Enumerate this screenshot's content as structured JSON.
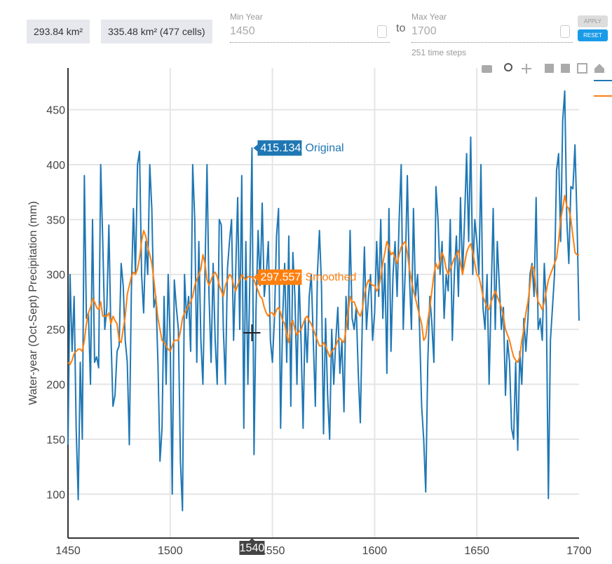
{
  "controls": {
    "area_selected": "293.84 km²",
    "area_total": "335.48 km² (477 cells)",
    "min_year_label": "Min Year",
    "min_year": "1450",
    "to": "to",
    "max_year_label": "Max Year",
    "max_year": "1700",
    "time_steps": "251 time steps",
    "apply": "APPLY",
    "reset": "RESET"
  },
  "chart_data": {
    "type": "line",
    "y_label": "Water-year (Oct-Sept) Precipitation (mm)",
    "x": [
      1450,
      1451,
      1452,
      1453,
      1454,
      1455,
      1456,
      1457,
      1458,
      1459,
      1460,
      1461,
      1462,
      1463,
      1464,
      1465,
      1466,
      1467,
      1468,
      1469,
      1470,
      1471,
      1472,
      1473,
      1474,
      1475,
      1476,
      1477,
      1478,
      1479,
      1480,
      1481,
      1482,
      1483,
      1484,
      1485,
      1486,
      1487,
      1488,
      1489,
      1490,
      1491,
      1492,
      1493,
      1494,
      1495,
      1496,
      1497,
      1498,
      1499,
      1500,
      1501,
      1502,
      1503,
      1504,
      1505,
      1506,
      1507,
      1508,
      1509,
      1510,
      1511,
      1512,
      1513,
      1514,
      1515,
      1516,
      1517,
      1518,
      1519,
      1520,
      1521,
      1522,
      1523,
      1524,
      1525,
      1526,
      1527,
      1528,
      1529,
      1530,
      1531,
      1532,
      1533,
      1534,
      1535,
      1536,
      1537,
      1538,
      1539,
      1540,
      1541,
      1542,
      1543,
      1544,
      1545,
      1546,
      1547,
      1548,
      1549,
      1550,
      1551,
      1552,
      1553,
      1554,
      1555,
      1556,
      1557,
      1558,
      1559,
      1560,
      1561,
      1562,
      1563,
      1564,
      1565,
      1566,
      1567,
      1568,
      1569,
      1570,
      1571,
      1572,
      1573,
      1574,
      1575,
      1576,
      1577,
      1578,
      1579,
      1580,
      1581,
      1582,
      1583,
      1584,
      1585,
      1586,
      1587,
      1588,
      1589,
      1590,
      1591,
      1592,
      1593,
      1594,
      1595,
      1596,
      1597,
      1598,
      1599,
      1600,
      1601,
      1602,
      1603,
      1604,
      1605,
      1606,
      1607,
      1608,
      1609,
      1610,
      1611,
      1612,
      1613,
      1614,
      1615,
      1616,
      1617,
      1618,
      1619,
      1620,
      1621,
      1622,
      1623,
      1624,
      1625,
      1626,
      1627,
      1628,
      1629,
      1630,
      1631,
      1632,
      1633,
      1634,
      1635,
      1636,
      1637,
      1638,
      1639,
      1640,
      1641,
      1642,
      1643,
      1644,
      1645,
      1646,
      1647,
      1648,
      1649,
      1650,
      1651,
      1652,
      1653,
      1654,
      1655,
      1656,
      1657,
      1658,
      1659,
      1660,
      1661,
      1662,
      1663,
      1664,
      1665,
      1666,
      1667,
      1668,
      1669,
      1670,
      1671,
      1672,
      1673,
      1674,
      1675,
      1676,
      1677,
      1678,
      1679,
      1680,
      1681,
      1682,
      1683,
      1684,
      1685,
      1686,
      1687,
      1688,
      1689,
      1690,
      1691,
      1692,
      1693,
      1694,
      1695,
      1696,
      1697,
      1698,
      1699,
      1700
    ],
    "series": [
      {
        "name": "Original",
        "color": "#1f77b4",
        "values": [
          145,
          300,
          230,
          280,
          160,
          95,
          220,
          150,
          390,
          260,
          265,
          200,
          350,
          220,
          225,
          215,
          400,
          330,
          250,
          270,
          345,
          245,
          180,
          190,
          230,
          235,
          310,
          290,
          240,
          220,
          145,
          285,
          360,
          300,
          400,
          412,
          300,
          265,
          330,
          300,
          400,
          360,
          270,
          280,
          220,
          130,
          160,
          280,
          200,
          300,
          240,
          100,
          295,
          270,
          250,
          130,
          85,
          300,
          260,
          280,
          230,
          400,
          350,
          220,
          330,
          240,
          200,
          300,
          400,
          280,
          220,
          310,
          240,
          200,
          350,
          345,
          250,
          200,
          305,
          330,
          350,
          240,
          300,
          370,
          250,
          390,
          160,
          330,
          200,
          300,
          415.1342,
          136,
          270,
          340,
          290,
          365,
          280,
          300,
          330,
          240,
          220,
          260,
          335,
          360,
          160,
          260,
          310,
          220,
          335,
          180,
          320,
          280,
          200,
          300,
          240,
          160,
          260,
          220,
          280,
          300,
          240,
          180,
          300,
          340,
          290,
          155,
          260,
          190,
          150,
          250,
          200,
          240,
          270,
          210,
          240,
          175,
          280,
          250,
          340,
          260,
          250,
          270,
          210,
          165,
          260,
          325,
          250,
          280,
          300,
          240,
          265,
          330,
          280,
          350,
          260,
          310,
          210,
          360,
          230,
          300,
          330,
          280,
          350,
          400,
          250,
          305,
          390,
          300,
          250,
          360,
          280,
          300,
          250,
          180,
          150,
          102,
          220,
          280,
          255,
          220,
          380,
          350,
          300,
          330,
          260,
          300,
          285,
          350,
          240,
          300,
          335,
          280,
          370,
          300,
          350,
          410,
          330,
          425,
          300,
          350,
          330,
          300,
          400,
          270,
          250,
          300,
          200,
          280,
          360,
          250,
          330,
          290,
          250,
          270,
          190,
          240,
          220,
          160,
          150,
          220,
          140,
          230,
          200,
          260,
          230,
          260,
          300,
          310,
          280,
          370,
          250,
          260,
          240,
          310,
          270,
          96,
          240,
          270,
          300,
          395,
          410,
          330,
          440,
          467,
          350,
          310,
          380,
          378,
          418,
          350,
          258
        ]
      },
      {
        "name": "Smoothed",
        "color": "#ff7f0e",
        "values": [
          220,
          218,
          222,
          228,
          230,
          232,
          232,
          230,
          240,
          255,
          265,
          270,
          278,
          275,
          270,
          268,
          275,
          262,
          262,
          262,
          265,
          255,
          262,
          258,
          255,
          240,
          238,
          250,
          262,
          282,
          290,
          298,
          302,
          300,
          305,
          315,
          330,
          340,
          335,
          325,
          318,
          310,
          295,
          278,
          260,
          250,
          240,
          238,
          235,
          232,
          230,
          235,
          240,
          240,
          240,
          248,
          260,
          265,
          268,
          272,
          275,
          280,
          290,
          295,
          300,
          305,
          318,
          310,
          295,
          290,
          295,
          300,
          302,
          298,
          290,
          285,
          280,
          290,
          295,
          300,
          298,
          290,
          285,
          290,
          295,
          300,
          297,
          295,
          298,
          298,
          297.5573,
          295,
          290,
          285,
          280,
          278,
          270,
          265,
          262,
          265,
          265,
          262,
          268,
          270,
          265,
          258,
          255,
          245,
          238,
          255,
          258,
          250,
          245,
          248,
          250,
          255,
          260,
          262,
          258,
          255,
          250,
          245,
          240,
          235,
          235,
          238,
          235,
          230,
          225,
          230,
          232,
          235,
          240,
          242,
          240,
          238,
          250,
          265,
          280,
          275,
          275,
          270,
          265,
          262,
          268,
          282,
          290,
          295,
          292,
          290,
          290,
          285,
          288,
          298,
          310,
          320,
          330,
          325,
          318,
          320,
          315,
          310,
          318,
          325,
          328,
          330,
          320,
          305,
          295,
          285,
          278,
          270,
          262,
          255,
          240,
          243,
          258,
          270,
          285,
          300,
          310,
          305,
          312,
          320,
          315,
          305,
          300,
          305,
          310,
          315,
          318,
          322,
          310,
          300,
          310,
          320,
          325,
          328,
          320,
          310,
          300,
          298,
          290,
          280,
          275,
          270,
          268,
          275,
          280,
          285,
          280,
          275,
          270,
          262,
          250,
          245,
          240,
          232,
          225,
          222,
          220,
          225,
          240,
          250,
          265,
          275,
          290,
          308,
          305,
          285,
          275,
          272,
          268,
          275,
          285,
          295,
          300,
          305,
          310,
          315,
          330,
          350,
          360,
          372,
          362,
          360,
          350,
          335,
          320,
          318,
          318
        ]
      }
    ],
    "xlim": [
      1450,
      1700
    ],
    "xticks": [
      1450,
      1500,
      1550,
      1600,
      1650,
      1700
    ],
    "ylim": [
      60,
      488
    ],
    "yticks": [
      100,
      150,
      200,
      250,
      300,
      350,
      400,
      450
    ],
    "grid": true,
    "hover": {
      "x": 1540,
      "index": 90
    }
  }
}
